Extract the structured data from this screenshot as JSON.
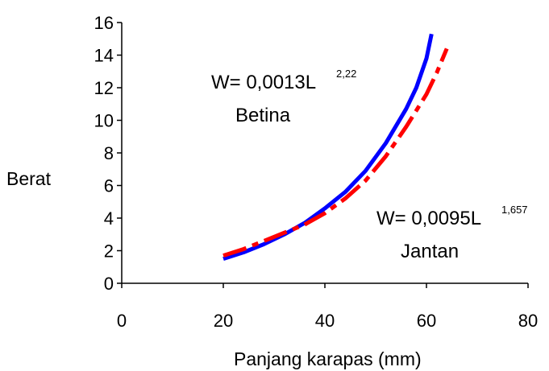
{
  "chart_data": {
    "type": "line",
    "xlabel": "Panjang karapas (mm)",
    "ylabel": "Berat",
    "xlim": [
      0,
      80
    ],
    "ylim": [
      0,
      16
    ],
    "xticks": [
      0,
      20,
      40,
      60,
      80
    ],
    "yticks": [
      0,
      2,
      4,
      6,
      8,
      10,
      12,
      14,
      16
    ],
    "grid": false,
    "legend": "none",
    "series": [
      {
        "color": "#0000ff",
        "style": "solid",
        "x": [
          20,
          24,
          28,
          32,
          36,
          40,
          44,
          48,
          52,
          56,
          58,
          60,
          61
        ],
        "y": [
          1.5,
          1.9,
          2.4,
          3.0,
          3.7,
          4.6,
          5.6,
          6.9,
          8.6,
          10.7,
          12.0,
          13.8,
          15.3
        ]
      },
      {
        "color": "#ff0000",
        "style": "dashed",
        "x": [
          20,
          24,
          28,
          32,
          36,
          40,
          44,
          48,
          52,
          56,
          60,
          62,
          64
        ],
        "y": [
          1.7,
          2.1,
          2.6,
          3.1,
          3.6,
          4.3,
          5.2,
          6.3,
          7.8,
          9.6,
          11.6,
          12.9,
          14.4
        ]
      }
    ],
    "annotations": [
      {
        "name": "betina",
        "base": "W= 0,0013L",
        "exponent": "2,22",
        "label": "Betina"
      },
      {
        "name": "jantan",
        "base": "W= 0,0095L",
        "exponent": "1,657",
        "label": "Jantan"
      }
    ]
  }
}
